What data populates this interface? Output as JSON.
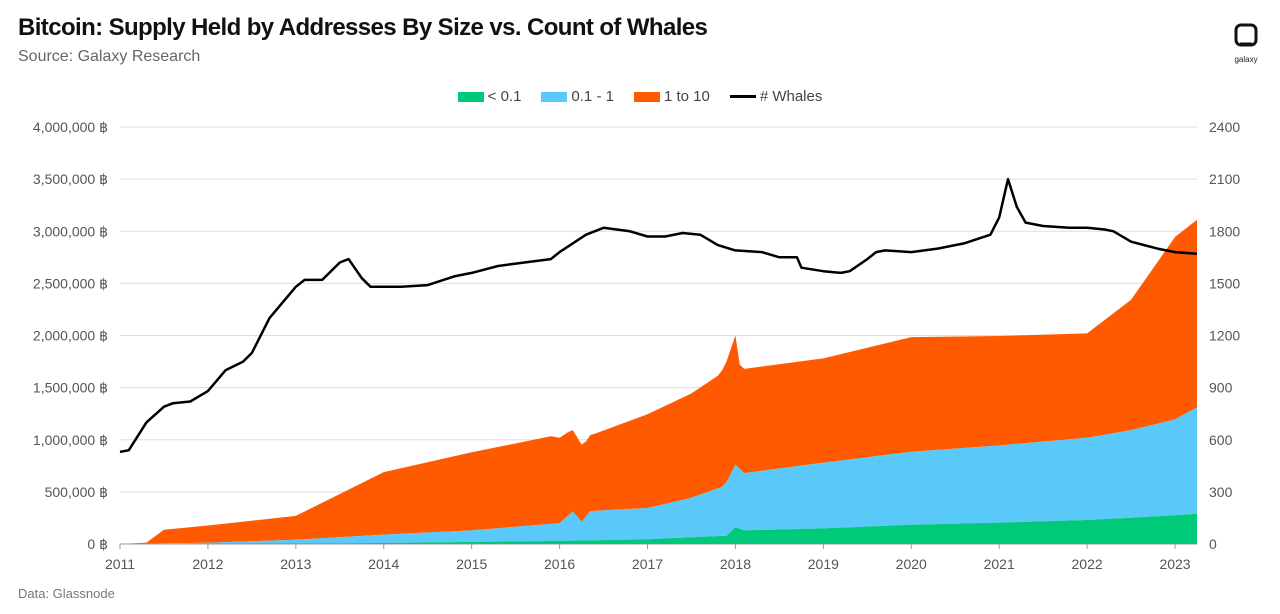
{
  "header": {
    "title": "Bitcoin: Supply Held by Addresses By Size vs. Count of Whales",
    "subtitle": "Source: Galaxy Research",
    "footer": "Data: Glassnode",
    "logo_text": "galaxy"
  },
  "colors": {
    "lt_0_1": "#00C97A",
    "b_0_1_1": "#5BC8FA",
    "b_1_10": "#FF5A00",
    "whales": "#000000",
    "grid": "#dddddd"
  },
  "chart_data": {
    "type": "area",
    "title": "Bitcoin: Supply Held by Addresses By Size vs. Count of Whales",
    "x_ticks": [
      "2011",
      "2012",
      "2013",
      "2014",
      "2015",
      "2016",
      "2017",
      "2018",
      "2019",
      "2020",
      "2021",
      "2022",
      "2023"
    ],
    "y_left": {
      "ylim": [
        0,
        4000000
      ],
      "ticks": [
        "0 ฿",
        "500,000 ฿",
        "1,000,000 ฿",
        "1,500,000 ฿",
        "2,000,000 ฿",
        "2,500,000 ฿",
        "3,000,000 ฿",
        "3,500,000 ฿",
        "4,000,000 ฿"
      ]
    },
    "y_right": {
      "ylim": [
        0,
        2400
      ],
      "ticks": [
        "0",
        "300",
        "600",
        "900",
        "1200",
        "1500",
        "1800",
        "2100",
        "2400"
      ]
    },
    "x_range": [
      2011.0,
      2023.25
    ],
    "legend": [
      "< 0.1",
      "0.1 - 1",
      "1 to 10",
      "# Whales"
    ],
    "stacked_series": [
      {
        "name": "< 0.1",
        "x": [
          2011.0,
          2012.0,
          2013.0,
          2014.0,
          2015.0,
          2016.0,
          2017.0,
          2017.9,
          2018.0,
          2018.1,
          2019.0,
          2020.0,
          2021.0,
          2022.0,
          2023.0,
          2023.25
        ],
        "values": [
          0,
          2000,
          5000,
          10000,
          20000,
          30000,
          45000,
          80000,
          160000,
          130000,
          150000,
          185000,
          205000,
          230000,
          275000,
          290000
        ]
      },
      {
        "name": "0.1 - 1",
        "x": [
          2011.0,
          2011.5,
          2012.0,
          2013.0,
          2014.0,
          2015.0,
          2016.0,
          2016.15,
          2016.25,
          2016.35,
          2017.0,
          2017.5,
          2017.85,
          2018.0,
          2018.1,
          2019.0,
          2020.0,
          2021.0,
          2022.0,
          2022.5,
          2023.0,
          2023.25
        ],
        "values": [
          0,
          5000,
          10000,
          35000,
          80000,
          110000,
          170000,
          280000,
          180000,
          280000,
          300000,
          380000,
          470000,
          600000,
          550000,
          630000,
          700000,
          740000,
          790000,
          840000,
          920000,
          1020000
        ]
      },
      {
        "name": "1 to 10",
        "x": [
          2011.0,
          2011.3,
          2011.5,
          2012.0,
          2013.0,
          2014.0,
          2015.0,
          2015.9,
          2016.1,
          2016.2,
          2016.3,
          2016.4,
          2017.0,
          2017.5,
          2017.8,
          2018.0,
          2018.05,
          2018.1,
          2019.0,
          2020.0,
          2021.0,
          2022.0,
          2022.5,
          2023.0,
          2023.25
        ],
        "values": [
          0,
          10000,
          130000,
          165000,
          230000,
          600000,
          750000,
          840000,
          800000,
          760000,
          720000,
          740000,
          900000,
          1000000,
          1080000,
          1240000,
          1000000,
          1000000,
          1000000,
          1100000,
          1050000,
          1000000,
          1250000,
          1750000,
          1800000
        ]
      }
    ],
    "line_series": {
      "name": "# Whales",
      "axis": "right",
      "x": [
        2011.0,
        2011.1,
        2011.3,
        2011.5,
        2011.6,
        2011.8,
        2012.0,
        2012.2,
        2012.4,
        2012.5,
        2012.7,
        2013.0,
        2013.1,
        2013.3,
        2013.5,
        2013.6,
        2013.75,
        2013.85,
        2014.0,
        2014.2,
        2014.5,
        2014.8,
        2015.0,
        2015.3,
        2015.6,
        2015.9,
        2016.0,
        2016.3,
        2016.5,
        2016.8,
        2017.0,
        2017.2,
        2017.4,
        2017.6,
        2017.8,
        2018.0,
        2018.3,
        2018.5,
        2018.7,
        2018.75,
        2019.0,
        2019.2,
        2019.3,
        2019.5,
        2019.6,
        2019.7,
        2020.0,
        2020.3,
        2020.6,
        2020.9,
        2021.0,
        2021.1,
        2021.2,
        2021.3,
        2021.5,
        2021.8,
        2022.0,
        2022.2,
        2022.3,
        2022.5,
        2022.8,
        2023.0,
        2023.25
      ],
      "values": [
        530,
        540,
        700,
        790,
        810,
        820,
        880,
        1000,
        1050,
        1100,
        1300,
        1480,
        1520,
        1520,
        1620,
        1640,
        1530,
        1480,
        1480,
        1480,
        1490,
        1540,
        1560,
        1600,
        1620,
        1640,
        1680,
        1780,
        1820,
        1800,
        1770,
        1770,
        1790,
        1780,
        1720,
        1690,
        1680,
        1650,
        1650,
        1590,
        1570,
        1560,
        1570,
        1640,
        1680,
        1690,
        1680,
        1700,
        1730,
        1780,
        1880,
        2100,
        1940,
        1850,
        1830,
        1820,
        1820,
        1810,
        1800,
        1740,
        1700,
        1680,
        1670
      ]
    }
  }
}
